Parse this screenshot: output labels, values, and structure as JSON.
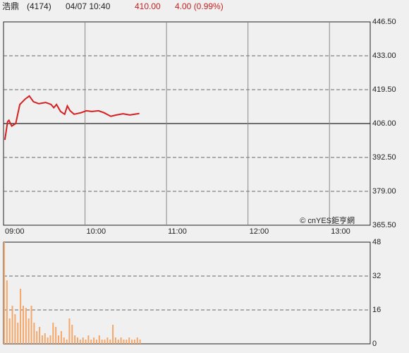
{
  "header": {
    "name": "浩鼎",
    "code": "(4174)",
    "datetime": "04/07 10:40",
    "price": "410.00",
    "change": "4.00 (0.99%)"
  },
  "chart_data": [
    {
      "type": "line",
      "annotation": "© cnYES鉅亨網",
      "color": "#d42020",
      "x": [
        "09:01",
        "09:03",
        "09:04",
        "09:06",
        "09:09",
        "09:12",
        "09:16",
        "09:19",
        "09:22",
        "09:26",
        "09:31",
        "09:35",
        "09:37",
        "09:39",
        "09:42",
        "09:45",
        "09:47",
        "09:49",
        "09:52",
        "09:57",
        "10:01",
        "10:05",
        "10:10",
        "10:14",
        "10:19",
        "10:23",
        "10:28",
        "10:33",
        "10:40"
      ],
      "values": [
        399.5,
        406.8,
        407.3,
        405.0,
        406.0,
        413.6,
        415.8,
        417.0,
        414.7,
        413.9,
        414.4,
        413.6,
        412.3,
        413.6,
        410.8,
        409.7,
        413.0,
        411.1,
        409.7,
        410.3,
        411.1,
        410.8,
        411.1,
        410.3,
        408.9,
        409.4,
        409.9,
        409.4,
        410.0
      ],
      "xlim": [
        "09:00",
        "13:30"
      ],
      "xticks": [
        "09:00",
        "10:00",
        "11:00",
        "12:00",
        "13:00"
      ],
      "ylim": [
        365.5,
        446.5
      ],
      "yticks": [
        {
          "value": 446.5,
          "label": "446.50"
        },
        {
          "value": 433,
          "label": "433.00"
        },
        {
          "value": 419.5,
          "label": "419.50"
        },
        {
          "value": 406,
          "label": "406.00"
        },
        {
          "value": 392.5,
          "label": "392.50"
        },
        {
          "value": 379,
          "label": "379.00"
        },
        {
          "value": 365.5,
          "label": "365.50"
        }
      ],
      "reference_line": 406
    },
    {
      "type": "bar",
      "color": "#f5a76a",
      "x": [
        "09:00",
        "09:02",
        "09:04",
        "09:06",
        "09:08",
        "09:10",
        "09:12",
        "09:14",
        "09:16",
        "09:18",
        "09:20",
        "09:22",
        "09:24",
        "09:26",
        "09:28",
        "09:30",
        "09:32",
        "09:34",
        "09:36",
        "09:38",
        "09:40",
        "09:42",
        "09:44",
        "09:46",
        "09:48",
        "09:50",
        "09:52",
        "09:54",
        "09:56",
        "09:58",
        "10:00",
        "10:02",
        "10:04",
        "10:06",
        "10:08",
        "10:10",
        "10:12",
        "10:14",
        "10:16",
        "10:18",
        "10:20",
        "10:22",
        "10:24",
        "10:26",
        "10:28",
        "10:30",
        "10:32",
        "10:34",
        "10:36",
        "10:38",
        "10:40"
      ],
      "values": [
        48,
        30,
        12,
        18,
        14,
        10,
        26,
        18,
        17,
        12,
        18,
        10,
        6,
        8,
        4,
        5,
        3,
        4,
        10,
        8,
        4,
        6,
        3,
        2,
        12,
        9,
        4,
        3,
        2,
        3,
        2,
        4,
        2,
        3,
        2,
        4,
        2,
        2,
        3,
        2,
        9,
        3,
        2,
        3,
        2,
        2,
        3,
        2,
        2,
        3,
        2
      ],
      "xlim": [
        "09:00",
        "13:30"
      ],
      "ylim": [
        0,
        48
      ],
      "yticks": [
        48,
        32,
        16,
        0
      ]
    }
  ]
}
